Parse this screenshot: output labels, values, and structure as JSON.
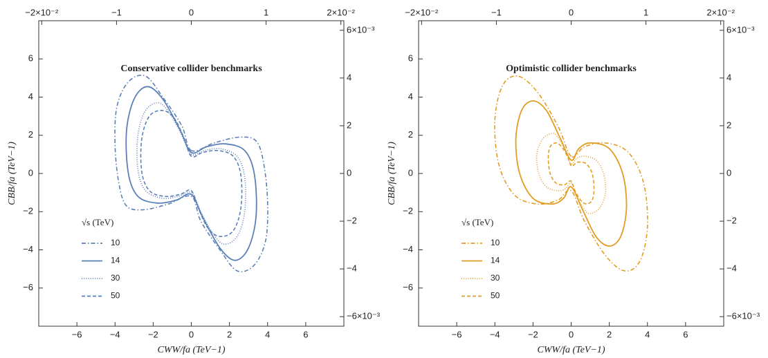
{
  "chart_data": [
    {
      "type": "line",
      "title": "Conservative collider benchmarks",
      "xlabel": "CWW/fa (TeV−1)",
      "ylabel": "CBB/fa (TeV−1)",
      "legend_title": "√s (TeV)",
      "xlim": [
        -8,
        8
      ],
      "ylim": [
        -8,
        8
      ],
      "x2lim": [
        -0.0204,
        0.0204
      ],
      "y2lim": [
        -0.0064,
        0.0064
      ],
      "xticks": [
        {
          "value": -6,
          "label": "−6"
        },
        {
          "value": -4,
          "label": "−4"
        },
        {
          "value": -2,
          "label": "−2"
        },
        0,
        2,
        4,
        6
      ],
      "yticks": [
        {
          "value": -6,
          "label": "−6"
        },
        {
          "value": -4,
          "label": "−4"
        },
        {
          "value": -2,
          "label": "−2"
        },
        0,
        2,
        4,
        6
      ],
      "x2ticks": [
        {
          "value": -0.02,
          "label": "−2×10⁻²"
        },
        {
          "value": -0.01,
          "label": "−1"
        },
        {
          "value": 0,
          "label": "0"
        },
        {
          "value": 0.01,
          "label": "1"
        },
        {
          "value": 0.02,
          "label": "2×10⁻²"
        }
      ],
      "y2ticks": [
        {
          "value": -0.006,
          "label": "−6×10⁻³"
        },
        {
          "value": -0.004,
          "label": "−4"
        },
        {
          "value": -0.002,
          "label": "−2"
        },
        {
          "value": 0,
          "label": "0"
        },
        {
          "value": 0.002,
          "label": "2"
        },
        {
          "value": 0.004,
          "label": "4"
        },
        {
          "value": 0.006,
          "label": "6×10⁻³"
        }
      ],
      "series": [
        {
          "name": "10",
          "color": "#5b80b8",
          "style": "dashdot",
          "x": [
            0,
            -0.5,
            -1.5,
            -2.4,
            -3.3,
            -3.9,
            -4.0,
            -3.8,
            -3.4,
            -2.5,
            -1.2,
            0,
            0.5,
            1.5,
            2.4,
            3.3,
            3.9,
            4.0,
            3.8,
            3.4,
            2.5,
            1.2
          ],
          "values": [
            1.2,
            2.5,
            4.0,
            5.1,
            4.8,
            3.5,
            1.5,
            -0.5,
            -1.7,
            -1.9,
            -1.6,
            -1.2,
            -2.5,
            -4.0,
            -5.1,
            -4.8,
            -3.5,
            -1.5,
            0.5,
            1.7,
            1.9,
            1.6
          ]
        },
        {
          "name": "14",
          "color": "#5b80b8",
          "style": "solid",
          "x": [
            0,
            -0.6,
            -1.5,
            -2.3,
            -3.0,
            -3.4,
            -3.3,
            -2.8,
            -1.8,
            -0.8,
            0,
            0.6,
            1.5,
            2.3,
            3.0,
            3.4,
            3.3,
            2.8,
            1.8,
            0.8
          ],
          "values": [
            1.1,
            2.3,
            3.9,
            4.55,
            3.9,
            2.2,
            0.0,
            -1.2,
            -1.55,
            -1.4,
            -1.1,
            -2.3,
            -3.9,
            -4.55,
            -3.9,
            -2.2,
            0.0,
            1.2,
            1.55,
            1.4
          ]
        },
        {
          "name": "30",
          "color": "#5b80b8",
          "style": "dotted",
          "x": [
            0,
            -0.5,
            -1.1,
            -1.7,
            -2.4,
            -2.8,
            -2.8,
            -2.4,
            -1.5,
            -0.7,
            0,
            0.5,
            1.1,
            1.7,
            2.4,
            2.8,
            2.8,
            2.4,
            1.5,
            0.7
          ],
          "values": [
            1.0,
            2.0,
            3.1,
            3.7,
            3.3,
            2.0,
            0.2,
            -0.9,
            -1.3,
            -1.2,
            -1.0,
            -2.0,
            -3.1,
            -3.7,
            -3.3,
            -2.0,
            -0.2,
            0.9,
            1.3,
            1.2
          ]
        },
        {
          "name": "50",
          "color": "#5b80b8",
          "style": "dashed",
          "x": [
            0,
            -0.4,
            -0.9,
            -1.5,
            -2.2,
            -2.6,
            -2.6,
            -2.2,
            -1.4,
            -0.6,
            0,
            0.4,
            0.9,
            1.5,
            2.2,
            2.6,
            2.6,
            2.2,
            1.4,
            0.6
          ],
          "values": [
            0.9,
            1.9,
            2.9,
            3.3,
            3.0,
            1.8,
            0.1,
            -0.9,
            -1.2,
            -1.1,
            -0.9,
            -1.9,
            -2.9,
            -3.3,
            -3.0,
            -1.8,
            -0.1,
            0.9,
            1.2,
            1.1
          ]
        }
      ]
    },
    {
      "type": "line",
      "title": "Optimistic collider benchmarks",
      "xlabel": "CWW/fa (TeV−1)",
      "ylabel": "CBB/fa (TeV−1)",
      "legend_title": "√s (TeV)",
      "xlim": [
        -8,
        8
      ],
      "ylim": [
        -8,
        8
      ],
      "x2lim": [
        -0.0204,
        0.0204
      ],
      "y2lim": [
        -0.0064,
        0.0064
      ],
      "xticks": [
        {
          "value": -6,
          "label": "−6"
        },
        {
          "value": -4,
          "label": "−4"
        },
        {
          "value": -2,
          "label": "−2"
        },
        0,
        2,
        4,
        6
      ],
      "yticks": [
        {
          "value": -6,
          "label": "−6"
        },
        {
          "value": -4,
          "label": "−4"
        },
        {
          "value": -2,
          "label": "−2"
        },
        0,
        2,
        4,
        6
      ],
      "x2ticks": [
        {
          "value": -0.02,
          "label": "−2×10⁻²"
        },
        {
          "value": -0.01,
          "label": "−1"
        },
        {
          "value": 0,
          "label": "0"
        },
        {
          "value": 0.01,
          "label": "1"
        },
        {
          "value": 0.02,
          "label": "2×10⁻²"
        }
      ],
      "y2ticks": [
        {
          "value": -0.006,
          "label": "−6×10⁻³"
        },
        {
          "value": -0.004,
          "label": "−4"
        },
        {
          "value": -0.002,
          "label": "−2"
        },
        {
          "value": 0,
          "label": "0"
        },
        {
          "value": 0.002,
          "label": "2"
        },
        {
          "value": 0.004,
          "label": "4"
        },
        {
          "value": 0.006,
          "label": "6×10⁻³"
        }
      ],
      "series": [
        {
          "name": "10",
          "color": "#e39c22",
          "style": "dashdot",
          "x": [
            0,
            -0.7,
            -1.8,
            -2.8,
            -3.6,
            -4.0,
            -3.8,
            -3.0,
            -1.8,
            -0.7,
            0,
            0.7,
            1.8,
            2.8,
            3.6,
            4.0,
            3.8,
            3.0,
            1.8,
            0.7
          ],
          "values": [
            0.9,
            2.5,
            4.3,
            5.1,
            4.6,
            2.8,
            0.5,
            -1.1,
            -1.6,
            -1.4,
            -0.9,
            -2.5,
            -4.3,
            -5.1,
            -4.6,
            -2.8,
            -0.5,
            1.1,
            1.6,
            1.4
          ]
        },
        {
          "name": "14",
          "color": "#e39c22",
          "style": "solid",
          "x": [
            0,
            -0.6,
            -1.3,
            -2.0,
            -2.6,
            -2.9,
            -2.7,
            -2.0,
            -1.0,
            -0.4,
            0,
            0.6,
            1.3,
            2.0,
            2.6,
            2.9,
            2.7,
            2.0,
            1.0,
            0.4
          ],
          "values": [
            0.7,
            1.9,
            3.3,
            3.8,
            3.3,
            1.8,
            0.0,
            -1.3,
            -1.6,
            -1.3,
            -0.7,
            -1.9,
            -3.3,
            -3.8,
            -3.3,
            -1.8,
            0.0,
            1.3,
            1.6,
            1.3
          ]
        },
        {
          "name": "30",
          "color": "#e39c22",
          "style": "dotted",
          "x": [
            0,
            -0.3,
            -0.7,
            -1.0,
            -1.5,
            -1.8,
            -1.7,
            -1.3,
            -0.7,
            -0.3,
            0,
            0.3,
            0.7,
            1.0,
            1.5,
            1.8,
            1.7,
            1.3,
            0.7,
            0.3
          ],
          "values": [
            0.5,
            1.2,
            1.9,
            2.1,
            1.8,
            1.0,
            0.0,
            -0.7,
            -0.9,
            -0.8,
            -0.5,
            -1.2,
            -1.9,
            -2.1,
            -1.8,
            -1.0,
            0.0,
            0.7,
            0.9,
            0.8
          ]
        },
        {
          "name": "50",
          "color": "#e39c22",
          "style": "dashed",
          "x": [
            0,
            -0.2,
            -0.5,
            -0.8,
            -1.1,
            -1.2,
            -1.1,
            -0.8,
            -0.4,
            -0.2,
            0,
            0.2,
            0.5,
            0.8,
            1.1,
            1.2,
            1.1,
            0.8,
            0.4,
            0.2
          ],
          "values": [
            0.4,
            0.9,
            1.4,
            1.6,
            1.4,
            0.8,
            0.0,
            -0.5,
            -0.6,
            -0.5,
            -0.4,
            -0.9,
            -1.4,
            -1.6,
            -1.4,
            -0.8,
            0.0,
            0.5,
            0.6,
            0.5
          ]
        }
      ]
    }
  ]
}
